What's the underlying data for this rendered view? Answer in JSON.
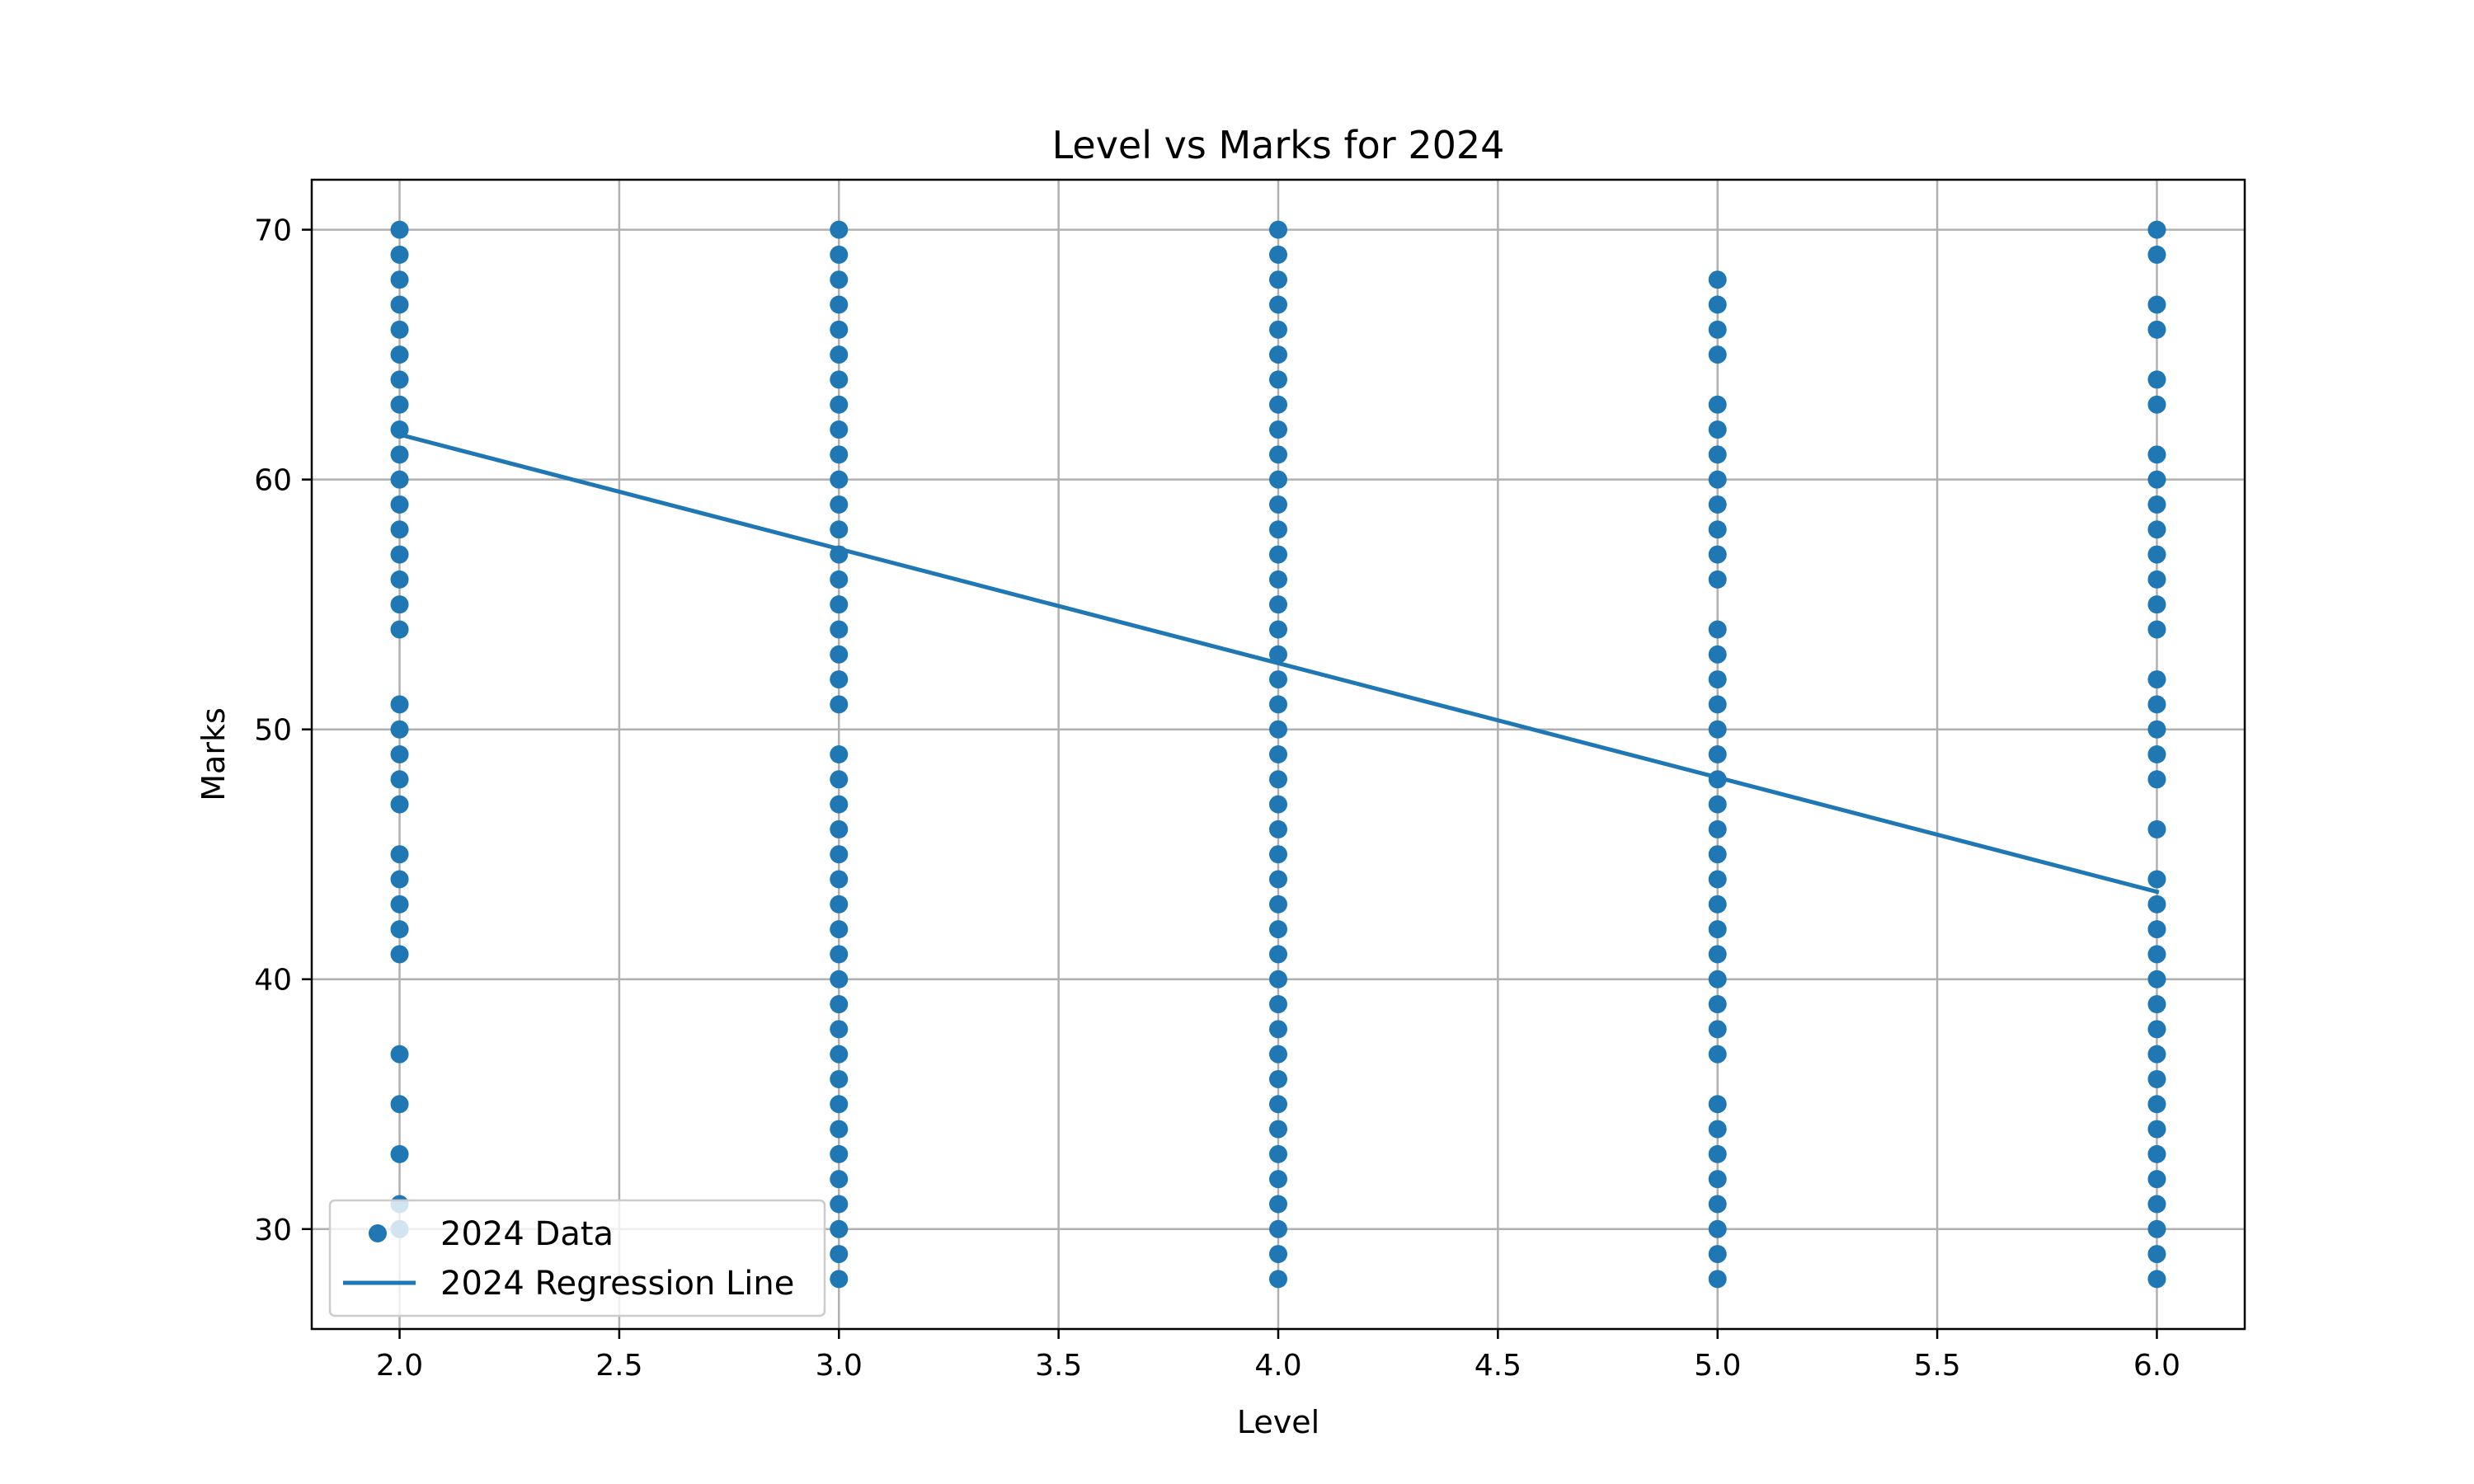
{
  "chart_data": {
    "type": "scatter",
    "title": "Level vs Marks for 2024",
    "xlabel": "Level",
    "ylabel": "Marks",
    "xlim": [
      1.8,
      6.2
    ],
    "ylim": [
      26,
      72
    ],
    "xticks": [
      2.0,
      2.5,
      3.0,
      3.5,
      4.0,
      4.5,
      5.0,
      5.5,
      6.0
    ],
    "xtick_labels": [
      "2.0",
      "2.5",
      "3.0",
      "3.5",
      "4.0",
      "4.5",
      "5.0",
      "5.5",
      "6.0"
    ],
    "yticks": [
      30,
      40,
      50,
      60,
      70
    ],
    "ytick_labels": [
      "30",
      "40",
      "50",
      "60",
      "70"
    ],
    "grid": true,
    "legend_position": "lower-left",
    "color": "#1f77b4",
    "series": [
      {
        "name": "2024 Data",
        "kind": "scatter",
        "points": [
          {
            "x": 2,
            "y": [
              70,
              69,
              68,
              67,
              66,
              65,
              64,
              63,
              62,
              61,
              60,
              59,
              58,
              57,
              56,
              55,
              54,
              51,
              50,
              49,
              48,
              47,
              45,
              44,
              43,
              42,
              41,
              37,
              35,
              33,
              31,
              30
            ]
          },
          {
            "x": 3,
            "y": [
              70,
              69,
              68,
              67,
              66,
              65,
              64,
              63,
              62,
              61,
              60,
              59,
              58,
              57,
              56,
              55,
              54,
              53,
              52,
              51,
              49,
              48,
              47,
              46,
              45,
              44,
              43,
              42,
              41,
              40,
              39,
              38,
              37,
              36,
              35,
              34,
              33,
              32,
              31,
              30,
              29,
              28
            ]
          },
          {
            "x": 4,
            "y": [
              70,
              69,
              68,
              67,
              66,
              65,
              64,
              63,
              62,
              61,
              60,
              59,
              58,
              57,
              56,
              55,
              54,
              53,
              52,
              51,
              50,
              49,
              48,
              47,
              46,
              45,
              44,
              43,
              42,
              41,
              40,
              39,
              38,
              37,
              36,
              35,
              34,
              33,
              32,
              31,
              30,
              29,
              28
            ]
          },
          {
            "x": 5,
            "y": [
              68,
              67,
              66,
              65,
              63,
              62,
              61,
              60,
              59,
              58,
              57,
              56,
              54,
              53,
              52,
              51,
              50,
              49,
              48,
              47,
              46,
              45,
              44,
              43,
              42,
              41,
              40,
              39,
              38,
              37,
              35,
              34,
              33,
              32,
              31,
              30,
              29,
              28
            ]
          },
          {
            "x": 6,
            "y": [
              70,
              69,
              67,
              66,
              64,
              63,
              61,
              60,
              59,
              58,
              57,
              56,
              55,
              54,
              52,
              51,
              50,
              49,
              48,
              46,
              44,
              43,
              42,
              41,
              40,
              39,
              38,
              37,
              36,
              35,
              34,
              33,
              32,
              31,
              30,
              29,
              28
            ]
          }
        ]
      },
      {
        "name": "2024 Regression Line",
        "kind": "line",
        "x": [
          2,
          6
        ],
        "y": [
          61.8,
          43.5
        ]
      }
    ]
  }
}
